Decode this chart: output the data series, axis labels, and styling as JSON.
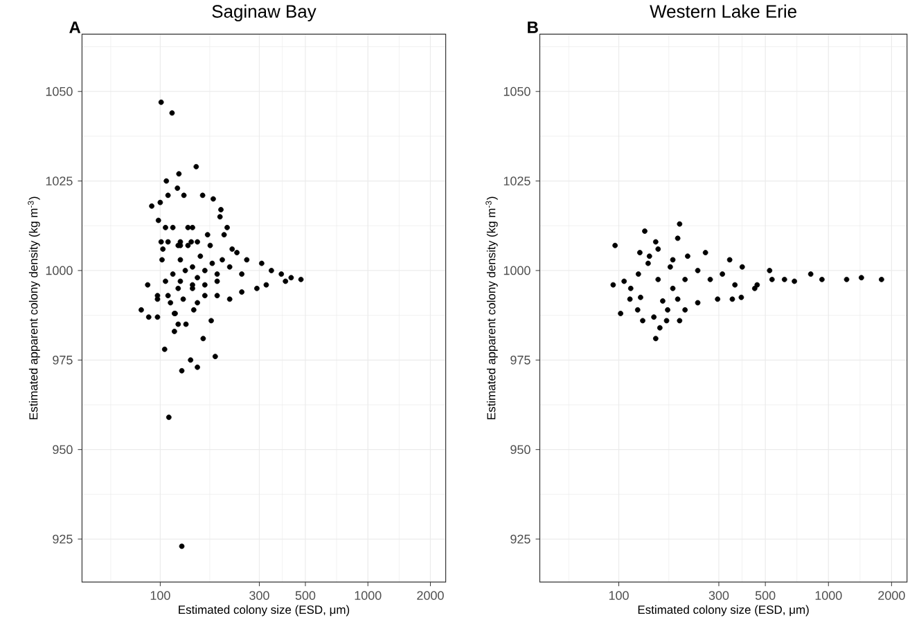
{
  "chart_data": [
    {
      "type": "scatter",
      "title": "Saginaw Bay",
      "annotations": [
        "A"
      ],
      "xlabel": "Estimated colony size (ESD, μm)",
      "ylabel": "Estimated apparent colony density (kg m$^{-3}$)",
      "color": "#000000",
      "marker": "circle",
      "log": "x",
      "grid": true,
      "xlim": [
        42,
        2370
      ],
      "ylim": [
        913,
        1066
      ],
      "xticks": [
        100,
        300,
        500,
        1000,
        2000
      ],
      "yticks": [
        925,
        950,
        975,
        1000,
        1025,
        1050
      ],
      "x": [
        101,
        114,
        149,
        123,
        107,
        121,
        130,
        160,
        180,
        91,
        100,
        109,
        196,
        194,
        98,
        210,
        203,
        106,
        125,
        141,
        101,
        102,
        122,
        136,
        151,
        174,
        222,
        234,
        261,
        308,
        343,
        383,
        427,
        476,
        401,
        324,
        292,
        247,
        216,
        188,
        164,
        143,
        125,
        115,
        106,
        87,
        97,
        97,
        109,
        112,
        118,
        129,
        151,
        81,
        88,
        97,
        117,
        145,
        122,
        117,
        133,
        176,
        161,
        105,
        184,
        140,
        151,
        127,
        110,
        127,
        125,
        143,
        164,
        188,
        216,
        136,
        156,
        125,
        115,
        109,
        143,
        169,
        199,
        247,
        188,
        164,
        143,
        122,
        103,
        132,
        151,
        178
      ],
      "values": [
        1047,
        1044,
        1029,
        1027,
        1025,
        1023,
        1021,
        1021,
        1020,
        1018,
        1019,
        1021,
        1017,
        1015,
        1014,
        1012,
        1010,
        1012,
        1007,
        1008,
        1008,
        1003,
        1007,
        1012,
        1008,
        1007,
        1006,
        1005,
        1003,
        1002,
        1000,
        999,
        998,
        997.5,
        997,
        996,
        995,
        994,
        992,
        993,
        993,
        996,
        997,
        999,
        997,
        996,
        993,
        992,
        993,
        991,
        988,
        992,
        991,
        989,
        987,
        987,
        988,
        989,
        985,
        983,
        985,
        986,
        981,
        978,
        976,
        975,
        973,
        972,
        959,
        923,
        1003,
        1001,
        1000,
        999,
        1001,
        1007,
        1004,
        1008,
        1012,
        1008,
        1012,
        1010,
        1003,
        999,
        997,
        996,
        995,
        995,
        1006,
        1000,
        998,
        1002
      ]
    },
    {
      "type": "scatter",
      "title": "Western Lake Erie",
      "annotations": [
        "B"
      ],
      "xlabel": "Estimated colony size (ESD, μm)",
      "ylabel": "Estimated apparent colony density (kg m$^{-3}$)",
      "color": "#000000",
      "marker": "circle",
      "log": "x",
      "grid": true,
      "xlim": [
        42,
        2370
      ],
      "ylim": [
        913,
        1066
      ],
      "xticks": [
        100,
        300,
        500,
        1000,
        2000
      ],
      "yticks": [
        925,
        950,
        975,
        1000,
        1025,
        1050
      ],
      "x": [
        195,
        191,
        133,
        150,
        96,
        126,
        154,
        140,
        181,
        213,
        259,
        338,
        388,
        524,
        823,
        1436,
        1791,
        1221,
        931,
        688,
        457,
        445,
        384,
        348,
        296,
        238,
        207,
        195,
        169,
        147,
        130,
        123,
        102,
        113,
        127,
        114,
        94,
        106,
        124,
        138,
        157,
        150,
        176,
        154,
        181,
        207,
        238,
        273,
        312,
        358,
        162,
        191,
        171,
        538,
        617
      ],
      "values": [
        1013,
        1009,
        1011,
        1008,
        1007,
        1005,
        1006,
        1004,
        1003,
        1004,
        1005,
        1003,
        1001,
        1000,
        999,
        998,
        997.5,
        997.5,
        997.5,
        997,
        996,
        995,
        992.5,
        992,
        992,
        991,
        989,
        986,
        986,
        987,
        986,
        989,
        988,
        992,
        992.5,
        995,
        996,
        997,
        999,
        1002,
        984,
        981,
        1001,
        997.5,
        995,
        997.5,
        1000,
        997.5,
        999,
        996,
        991.5,
        992,
        989,
        997.5,
        997.5
      ]
    }
  ]
}
